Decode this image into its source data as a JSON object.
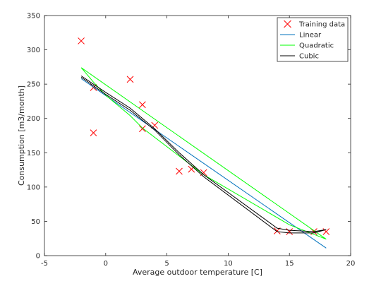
{
  "chart_data": {
    "type": "scatter",
    "title": "",
    "xlabel": "Average outdoor temperature [C]",
    "ylabel": "Consumption [m3/month]",
    "xlim": [
      -5,
      20
    ],
    "ylim": [
      0,
      350
    ],
    "xticks": [
      -5,
      0,
      5,
      10,
      15,
      20
    ],
    "yticks": [
      0,
      50,
      100,
      150,
      200,
      250,
      300,
      350
    ],
    "grid": false,
    "legend_position": "top-right",
    "series": [
      {
        "name": "Training data",
        "kind": "marker",
        "marker": "x",
        "color": "#ff0000",
        "x": [
          -2,
          -1,
          -1,
          2,
          3,
          3,
          4,
          6,
          7,
          8,
          14,
          15,
          17,
          18
        ],
        "y": [
          313,
          245,
          179,
          257,
          220,
          185,
          190,
          123,
          126,
          121,
          36,
          35,
          35,
          35
        ]
      },
      {
        "name": "Linear",
        "kind": "line",
        "color": "#0072bd",
        "x": [
          -2,
          18
        ],
        "y": [
          258,
          11
        ]
      },
      {
        "name": "Quadratic",
        "kind": "line",
        "color": "#00ff00",
        "x": [
          -2,
          18,
          15,
          8,
          3,
          2,
          0,
          -1,
          -2
        ],
        "y": [
          274,
          24,
          45,
          118,
          186,
          204,
          234,
          253,
          274
        ]
      },
      {
        "name": "Cubic",
        "kind": "line",
        "color": "#000000",
        "x": [
          -2,
          0,
          2,
          4,
          6,
          8,
          14,
          15,
          17,
          18,
          17,
          15,
          14,
          8,
          6,
          4,
          2,
          0,
          -2
        ],
        "y": [
          262,
          238,
          215,
          185,
          150,
          118,
          40,
          37,
          35,
          38,
          33,
          33,
          35,
          115,
          147,
          183,
          212,
          235,
          260
        ]
      }
    ]
  }
}
